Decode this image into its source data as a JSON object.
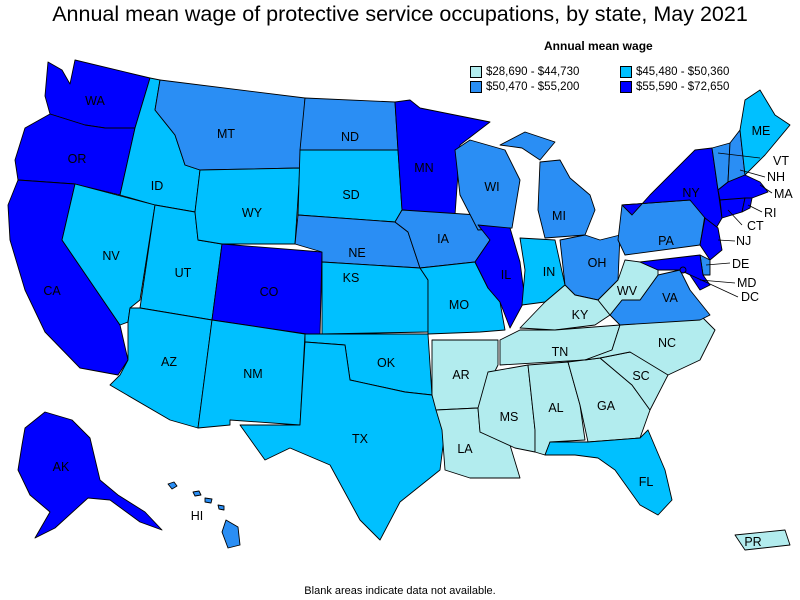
{
  "title": "Annual mean wage of protective service occupations, by state, May 2021",
  "legend": {
    "title": "Annual mean wage",
    "items": [
      {
        "label": "$28,690 - $44,730",
        "color": "#b2ecee"
      },
      {
        "label": "$50,470 - $55,200",
        "color": "#2a8ef4"
      },
      {
        "label": "$45,480 - $50,360",
        "color": "#00c0ff"
      },
      {
        "label": "$55,590 - $72,650",
        "color": "#0000ff"
      }
    ]
  },
  "footnote": "Blank areas indicate data not available.",
  "map_data": {
    "type": "choropleth",
    "colors": {
      "t1": "#b2ecee",
      "t2": "#00c0ff",
      "t3": "#2a8ef4",
      "t4": "#0000ff"
    },
    "states": [
      {
        "abbr": "WA",
        "tier": "t4"
      },
      {
        "abbr": "OR",
        "tier": "t4"
      },
      {
        "abbr": "CA",
        "tier": "t4"
      },
      {
        "abbr": "AK",
        "tier": "t4"
      },
      {
        "abbr": "CO",
        "tier": "t4"
      },
      {
        "abbr": "MN",
        "tier": "t4"
      },
      {
        "abbr": "IL",
        "tier": "t4"
      },
      {
        "abbr": "NY",
        "tier": "t4"
      },
      {
        "abbr": "NJ",
        "tier": "t4"
      },
      {
        "abbr": "MA",
        "tier": "t4"
      },
      {
        "abbr": "CT",
        "tier": "t4"
      },
      {
        "abbr": "RI",
        "tier": "t4"
      },
      {
        "abbr": "MD",
        "tier": "t4"
      },
      {
        "abbr": "DC",
        "tier": "t4"
      },
      {
        "abbr": "MT",
        "tier": "t3"
      },
      {
        "abbr": "ND",
        "tier": "t3"
      },
      {
        "abbr": "NE",
        "tier": "t3"
      },
      {
        "abbr": "IA",
        "tier": "t3"
      },
      {
        "abbr": "WI",
        "tier": "t3"
      },
      {
        "abbr": "MI",
        "tier": "t3"
      },
      {
        "abbr": "OH",
        "tier": "t3"
      },
      {
        "abbr": "PA",
        "tier": "t3"
      },
      {
        "abbr": "VA",
        "tier": "t3"
      },
      {
        "abbr": "DE",
        "tier": "t3"
      },
      {
        "abbr": "VT",
        "tier": "t3"
      },
      {
        "abbr": "NH",
        "tier": "t3"
      },
      {
        "abbr": "HI",
        "tier": "t3"
      },
      {
        "abbr": "ID",
        "tier": "t2"
      },
      {
        "abbr": "NV",
        "tier": "t2"
      },
      {
        "abbr": "UT",
        "tier": "t2"
      },
      {
        "abbr": "AZ",
        "tier": "t2"
      },
      {
        "abbr": "WY",
        "tier": "t2"
      },
      {
        "abbr": "SD",
        "tier": "t2"
      },
      {
        "abbr": "NM",
        "tier": "t2"
      },
      {
        "abbr": "KS",
        "tier": "t2"
      },
      {
        "abbr": "OK",
        "tier": "t2"
      },
      {
        "abbr": "TX",
        "tier": "t2"
      },
      {
        "abbr": "MO",
        "tier": "t2"
      },
      {
        "abbr": "IN",
        "tier": "t2"
      },
      {
        "abbr": "FL",
        "tier": "t2"
      },
      {
        "abbr": "ME",
        "tier": "t2"
      },
      {
        "abbr": "AR",
        "tier": "t1"
      },
      {
        "abbr": "LA",
        "tier": "t1"
      },
      {
        "abbr": "MS",
        "tier": "t1"
      },
      {
        "abbr": "AL",
        "tier": "t1"
      },
      {
        "abbr": "GA",
        "tier": "t1"
      },
      {
        "abbr": "SC",
        "tier": "t1"
      },
      {
        "abbr": "NC",
        "tier": "t1"
      },
      {
        "abbr": "TN",
        "tier": "t1"
      },
      {
        "abbr": "KY",
        "tier": "t1"
      },
      {
        "abbr": "WV",
        "tier": "t1"
      },
      {
        "abbr": "PR",
        "tier": "t1"
      }
    ]
  }
}
